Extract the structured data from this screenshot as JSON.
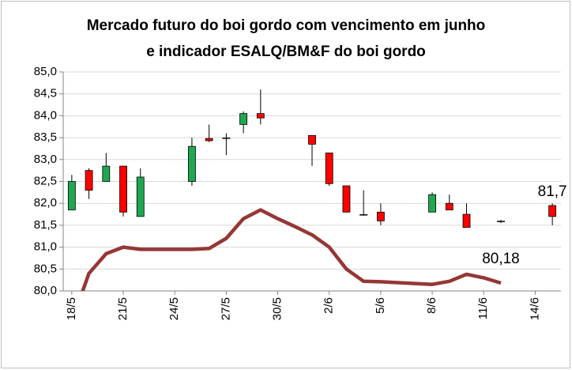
{
  "chart_data": {
    "type": "candlestick",
    "title": "Mercado futuro do boi gordo com vencimento em junho e indicador ESALQ/BM&F do boi gordo",
    "categories": [
      "18/5",
      null,
      null,
      "21/5",
      null,
      null,
      "24/5",
      null,
      null,
      "27/5",
      null,
      null,
      "30/5",
      null,
      null,
      "2/6",
      null,
      null,
      "5/6",
      null,
      null,
      "8/6",
      null,
      null,
      "11/6",
      null,
      null,
      "14/6",
      null
    ],
    "ylim": [
      80,
      85
    ],
    "yticks": [
      {
        "value": 80,
        "label": "80,0"
      },
      {
        "value": 80.5,
        "label": "80,5"
      },
      {
        "value": 81,
        "label": "81,0"
      },
      {
        "value": 81.5,
        "label": "81,5"
      },
      {
        "value": 82,
        "label": "82,0"
      },
      {
        "value": 82.5,
        "label": "82,5"
      },
      {
        "value": 83,
        "label": "83,0"
      },
      {
        "value": 83.5,
        "label": "83,5"
      },
      {
        "value": 84,
        "label": "84,0"
      },
      {
        "value": 84.5,
        "label": "84,5"
      },
      {
        "value": 85,
        "label": "85,0"
      }
    ],
    "grid": true,
    "up_color": "#1fa850",
    "down_color": "#ff0000",
    "open": [
      81.85,
      82.75,
      82.5,
      82.85,
      81.7,
      null,
      null,
      82.5,
      83.48,
      83.5,
      83.8,
      84.05,
      null,
      null,
      83.55,
      83.15,
      82.4,
      81.75,
      81.8,
      null,
      null,
      81.8,
      82.0,
      81.75,
      null,
      81.6,
      null,
      null,
      81.95
    ],
    "high": [
      82.65,
      82.8,
      83.15,
      82.85,
      82.8,
      null,
      null,
      83.5,
      83.8,
      83.6,
      84.1,
      84.6,
      null,
      null,
      83.55,
      83.15,
      82.4,
      82.3,
      82.0,
      null,
      null,
      82.25,
      82.2,
      82.0,
      null,
      81.62,
      null,
      null,
      82.0
    ],
    "low": [
      81.85,
      82.1,
      82.5,
      81.7,
      81.7,
      null,
      null,
      82.4,
      83.4,
      83.1,
      83.6,
      83.8,
      null,
      null,
      82.85,
      82.4,
      81.8,
      81.72,
      81.5,
      null,
      null,
      81.8,
      81.85,
      81.45,
      null,
      81.55,
      null,
      null,
      81.5
    ],
    "close": [
      82.5,
      82.3,
      82.85,
      81.8,
      82.6,
      null,
      null,
      83.3,
      83.43,
      83.5,
      84.05,
      83.95,
      null,
      null,
      83.35,
      82.45,
      81.8,
      81.75,
      81.6,
      null,
      null,
      82.2,
      81.85,
      81.45,
      null,
      81.6,
      null,
      null,
      81.7
    ],
    "close_labels": [
      null,
      null,
      null,
      null,
      null,
      null,
      null,
      null,
      null,
      null,
      null,
      null,
      null,
      null,
      null,
      null,
      null,
      null,
      null,
      null,
      null,
      null,
      null,
      null,
      null,
      null,
      null,
      null,
      "81,7"
    ],
    "series": [
      {
        "type": "line",
        "color": "#953735",
        "values": [
          79.3,
          80.4,
          80.85,
          81.0,
          80.95,
          80.95,
          80.95,
          80.95,
          80.97,
          81.2,
          81.65,
          81.85,
          81.65,
          81.47,
          81.28,
          81.0,
          80.5,
          80.22,
          80.21,
          80.19,
          80.17,
          80.15,
          80.22,
          80.38,
          80.3,
          80.18,
          null,
          null,
          null
        ],
        "value_labels": [
          null,
          null,
          null,
          null,
          null,
          null,
          null,
          null,
          null,
          null,
          null,
          null,
          null,
          null,
          null,
          null,
          null,
          null,
          null,
          null,
          null,
          null,
          null,
          null,
          null,
          "80,18",
          null,
          null,
          null
        ]
      }
    ]
  }
}
